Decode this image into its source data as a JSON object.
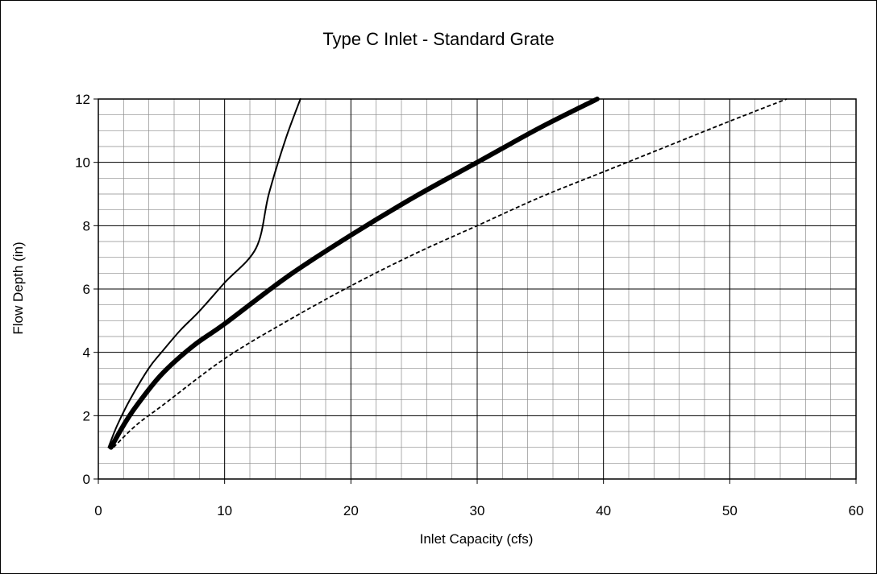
{
  "chart_data": {
    "type": "line",
    "title": "Type C Inlet - Standard Grate",
    "xlabel": "Inlet Capacity (cfs)",
    "ylabel": "Flow Depth (in)",
    "xlim": [
      0,
      60
    ],
    "ylim": [
      0,
      12
    ],
    "x_ticks": [
      "0",
      "10",
      "20",
      "30",
      "40",
      "50",
      "60"
    ],
    "y_ticks": [
      "0",
      "2",
      "4",
      "6",
      "8",
      "10",
      "12"
    ],
    "major_grid": true,
    "minor_grid": true,
    "legend": "none",
    "series": [
      {
        "style": "thin-solid",
        "color": "#000000",
        "points": [
          [
            0.8,
            1
          ],
          [
            1.5,
            1.7
          ],
          [
            2.5,
            2.5
          ],
          [
            4,
            3.5
          ],
          [
            5,
            4
          ],
          [
            6.5,
            4.7
          ],
          [
            8,
            5.3
          ],
          [
            10,
            6.2
          ],
          [
            12.5,
            7.3
          ],
          [
            13.5,
            9
          ],
          [
            14.8,
            10.7
          ],
          [
            16,
            12
          ]
        ]
      },
      {
        "style": "thick-solid",
        "color": "#000000",
        "points": [
          [
            1,
            1
          ],
          [
            2,
            1.7
          ],
          [
            3,
            2.3
          ],
          [
            5,
            3.3
          ],
          [
            7.5,
            4.2
          ],
          [
            10,
            4.9
          ],
          [
            15,
            6.4
          ],
          [
            20,
            7.7
          ],
          [
            25,
            8.9
          ],
          [
            30,
            10
          ],
          [
            35,
            11.1
          ],
          [
            39.5,
            12
          ]
        ]
      },
      {
        "style": "dashed",
        "color": "#000000",
        "points": [
          [
            1.2,
            1
          ],
          [
            3,
            1.7
          ],
          [
            5,
            2.3
          ],
          [
            10,
            3.8
          ],
          [
            15,
            5
          ],
          [
            20,
            6.1
          ],
          [
            25,
            7.1
          ],
          [
            30,
            8
          ],
          [
            35,
            8.9
          ],
          [
            40,
            9.7
          ],
          [
            45,
            10.5
          ],
          [
            50,
            11.3
          ],
          [
            54.5,
            12
          ]
        ]
      }
    ]
  }
}
